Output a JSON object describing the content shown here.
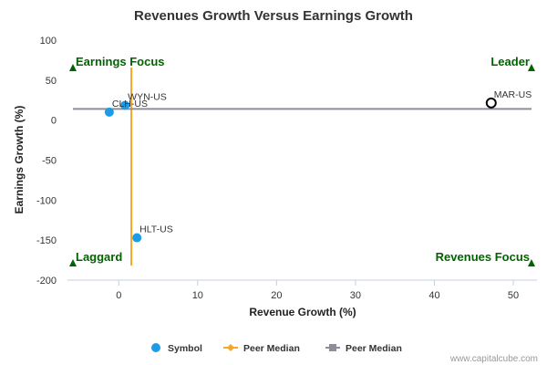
{
  "chart_data": {
    "type": "scatter",
    "title": "Revenues Growth Versus Earnings Growth",
    "xlabel": "Revenue Growth (%)",
    "ylabel": "Earnings Growth (%)",
    "xlim": [
      -6.5,
      53
    ],
    "ylim": [
      -200,
      100
    ],
    "xticks": [
      0,
      10,
      20,
      30,
      40,
      50
    ],
    "yticks": [
      100,
      50,
      0,
      -50,
      -100,
      -150,
      -200
    ],
    "grid": false,
    "points": [
      {
        "label": "WYN-US",
        "x": 0.8,
        "y": 18.5,
        "style": "filled"
      },
      {
        "label": "CLH-US",
        "x": -1.2,
        "y": 10,
        "style": "filled"
      },
      {
        "label": "MAR-US",
        "x": 47.2,
        "y": 21.5,
        "style": "hollow"
      },
      {
        "label": "HLT-US",
        "x": 2.3,
        "y": -147,
        "style": "filled"
      }
    ],
    "peer_median_x": 1.6,
    "peer_median_y": 14,
    "quadrants": [
      {
        "label": "Earnings Focus",
        "position": "top-left"
      },
      {
        "label": "Leader",
        "position": "top-right"
      },
      {
        "label": "Laggard",
        "position": "bottom-left"
      },
      {
        "label": "Revenues Focus",
        "position": "bottom-right"
      }
    ],
    "legend": [
      {
        "name": "Symbol",
        "marker": "circle"
      },
      {
        "name": "Peer Median",
        "marker": "diamond-line"
      },
      {
        "name": "Peer Median",
        "marker": "square-line"
      }
    ],
    "legend_position": "bottom",
    "credit": "www.capitalcube.com",
    "colors": {
      "point": "#1e9be6",
      "peer_x_line": "#f5a623",
      "peer_y_line": "#8c8f99",
      "quadrant_text": "#006400",
      "axis": "#c5d0de"
    }
  }
}
